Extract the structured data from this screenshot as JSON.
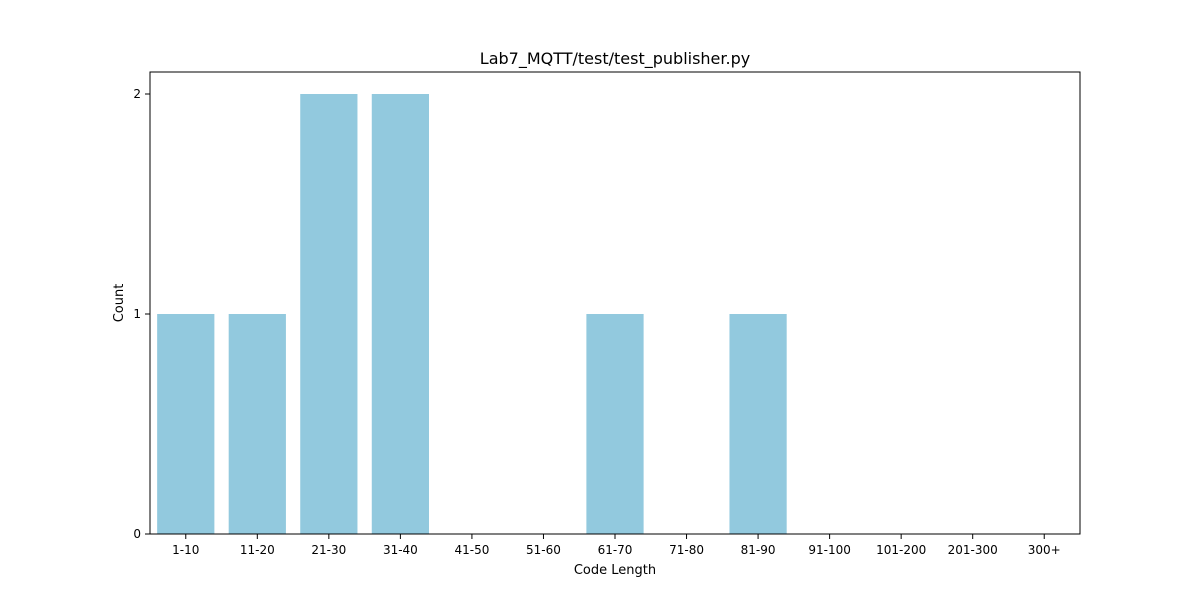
{
  "chart_data": {
    "type": "bar",
    "title": "Lab7_MQTT/test/test_publisher.py",
    "xlabel": "Code Length",
    "ylabel": "Count",
    "categories": [
      "1-10",
      "11-20",
      "21-30",
      "31-40",
      "41-50",
      "51-60",
      "61-70",
      "71-80",
      "81-90",
      "91-100",
      "101-200",
      "201-300",
      "300+"
    ],
    "values": [
      1,
      1,
      2,
      2,
      0,
      0,
      1,
      0,
      1,
      0,
      0,
      0,
      0
    ],
    "ylim": [
      0,
      2.1
    ],
    "yticks": [
      0,
      1,
      2
    ],
    "bar_color": "#92c9de",
    "grid": false,
    "legend": "none"
  }
}
